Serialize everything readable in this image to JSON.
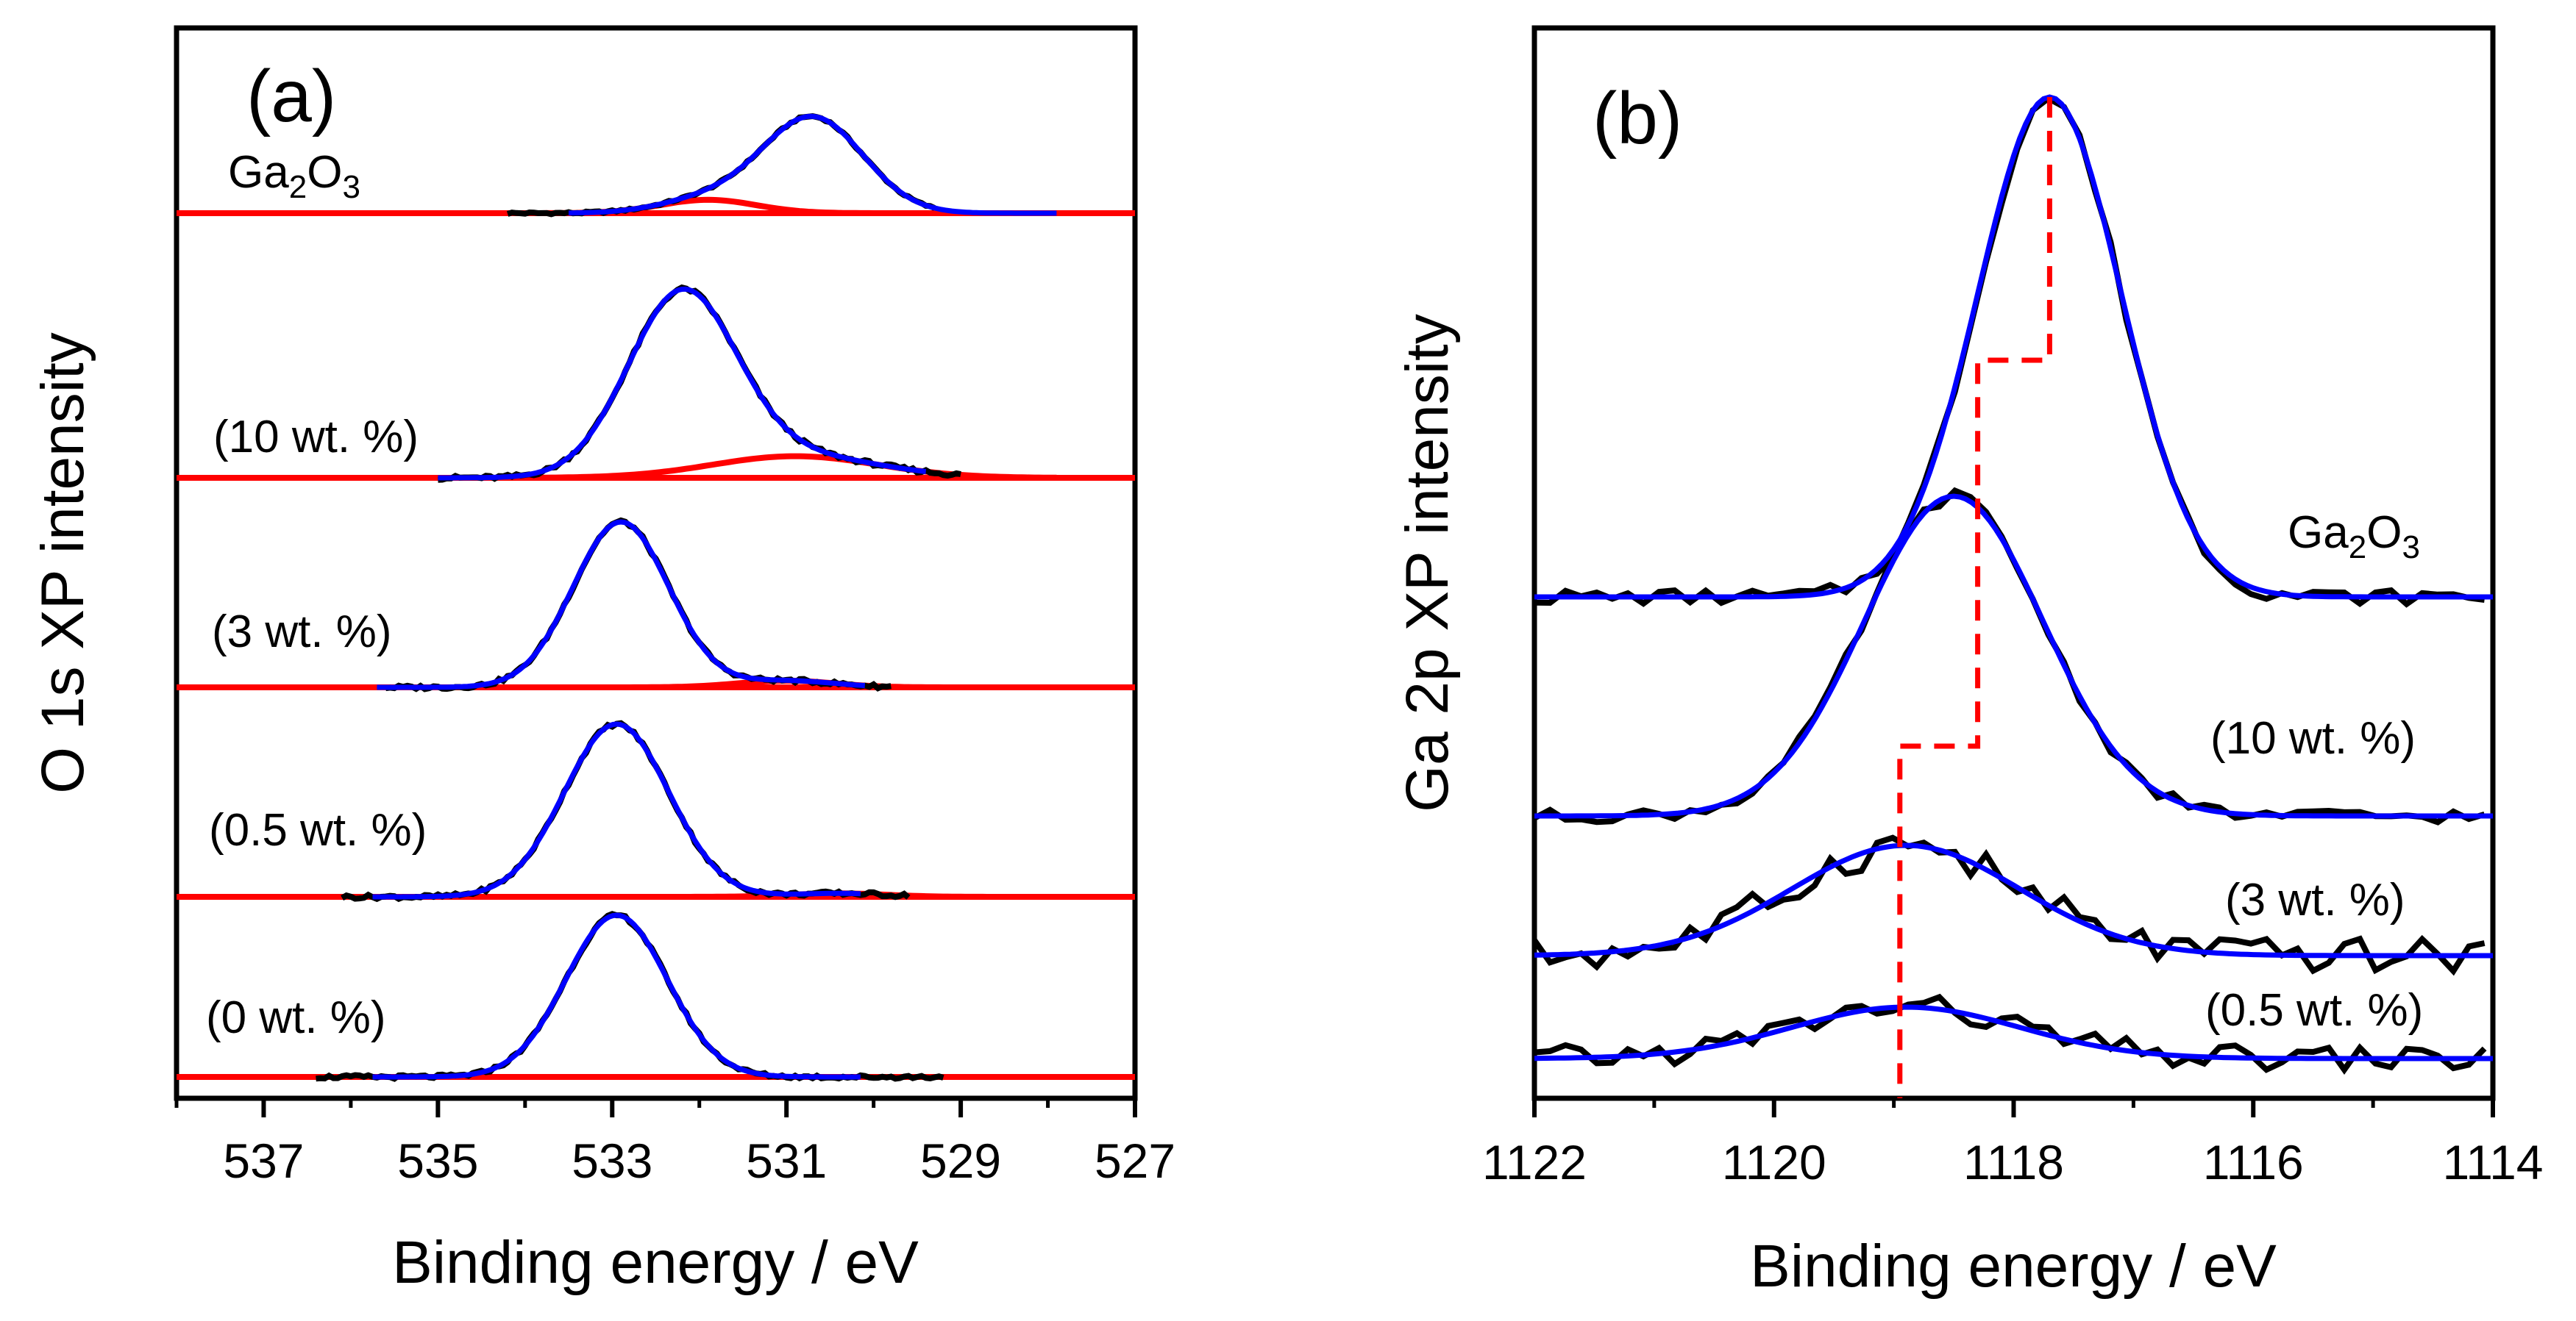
{
  "chart_data": [
    {
      "panel_label": "(a)",
      "type": "line",
      "xlabel": "Binding energy / eV",
      "ylabel": "O 1s XP intensity",
      "xlim": [
        538,
        527
      ],
      "x_ticks": [
        "537",
        "535",
        "533",
        "531",
        "529",
        "527"
      ],
      "x_tick_values": [
        537,
        535,
        533,
        531,
        529,
        527
      ],
      "stacked": true,
      "spectra": [
        {
          "label": "Ga2O3",
          "label_text": "Ga",
          "label_sub": "2",
          "label_tail": "O",
          "label_sub2": "3",
          "peaks": [
            {
              "center": 530.7,
              "sigma": 0.58,
              "height": 1.0
            }
          ],
          "side": {
            "center": 531.9,
            "sigma": 0.55,
            "height": 0.14
          },
          "data_range": [
            534.2,
            529.3
          ],
          "height_frac": 0.45
        },
        {
          "label": "(10 wt. %)",
          "peaks": [
            {
              "center": 532.2,
              "sigma": 0.62,
              "height": 1.0
            }
          ],
          "side": {
            "center": 530.9,
            "sigma": 0.95,
            "height": 0.12
          },
          "data_range": [
            535.0,
            529.0
          ],
          "height_frac": 0.83
        },
        {
          "label": "(3 wt. %)",
          "peaks": [
            {
              "center": 532.9,
              "sigma": 0.55,
              "height": 1.0
            }
          ],
          "side": {
            "center": 531.0,
            "sigma": 0.55,
            "height": 0.04
          },
          "data_range": [
            535.6,
            529.8
          ],
          "height_frac": 0.8
        },
        {
          "label": "(0.5 wt. %)",
          "peaks": [
            {
              "center": 532.95,
              "sigma": 0.6,
              "height": 1.0
            }
          ],
          "side": {
            "center": 530.4,
            "sigma": 0.55,
            "height": 0.02
          },
          "data_range": [
            536.1,
            529.6
          ],
          "height_frac": 0.82
        },
        {
          "label": "(0 wt. %)",
          "peaks": [
            {
              "center": 532.95,
              "sigma": 0.58,
              "height": 1.0
            }
          ],
          "side": null,
          "data_range": [
            536.4,
            529.2
          ],
          "height_frac": 0.84
        }
      ]
    },
    {
      "panel_label": "(b)",
      "type": "line",
      "xlabel": "Binding energy / eV",
      "ylabel": "Ga 2p XP intensity",
      "xlim": [
        1122,
        1114
      ],
      "x_ticks": [
        "1122",
        "1120",
        "1118",
        "1116",
        "1114"
      ],
      "x_tick_values": [
        1122,
        1120,
        1118,
        1116,
        1114
      ],
      "stacked": true,
      "spectra": [
        {
          "label": "Ga2O3",
          "label_text": "Ga",
          "label_sub": "2",
          "label_tail": "O",
          "label_sub2": "3",
          "peaks": [
            {
              "center": 1117.7,
              "sigma": 0.6,
              "height": 1.0
            }
          ],
          "noise": 0.015
        },
        {
          "label": "(10 wt. %)",
          "peaks": [
            {
              "center": 1118.5,
              "sigma": 0.75,
              "height": 1.0
            }
          ],
          "noise": 0.02
        },
        {
          "label": "(3 wt. %)",
          "peaks": [
            {
              "center": 1118.9,
              "sigma": 0.95,
              "height": 1.0
            }
          ],
          "noise": 0.16
        },
        {
          "label": "(0.5 wt. %)",
          "peaks": [
            {
              "center": 1118.9,
              "sigma": 0.95,
              "height": 1.0
            }
          ],
          "noise": 0.25
        }
      ],
      "peak_markers": [
        1117.7,
        1118.3,
        1118.95
      ]
    }
  ]
}
